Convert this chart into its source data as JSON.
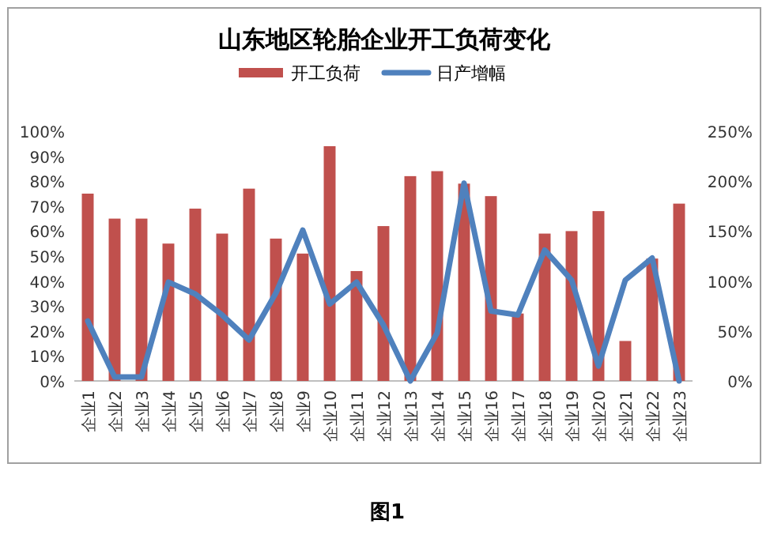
{
  "chart_data": {
    "type": "bar",
    "title": "山东地区轮胎企业开工负荷变化",
    "categories": [
      "企业1",
      "企业2",
      "企业3",
      "企业4",
      "企业5",
      "企业6",
      "企业7",
      "企业8",
      "企业9",
      "企业10",
      "企业11",
      "企业12",
      "企业13",
      "企业14",
      "企业15",
      "企业16",
      "企业17",
      "企业18",
      "企业19",
      "企业20",
      "企业21",
      "企业22",
      "企业23"
    ],
    "series": [
      {
        "name": "开工负荷",
        "color": "#c0504d",
        "values": [
          75,
          65,
          65,
          55,
          69,
          59,
          77,
          57,
          51,
          94,
          44,
          62,
          82,
          84,
          79,
          74,
          27,
          59,
          60,
          68,
          16,
          49,
          71
        ]
      },
      {
        "name": "日产增幅",
        "type": "line",
        "axis": "y2",
        "color": "#4f81bd",
        "values": [
          60,
          4,
          4,
          99,
          87,
          66,
          41,
          88,
          151,
          77,
          99,
          56,
          0,
          48,
          198,
          70,
          66,
          131,
          101,
          15,
          101,
          123,
          0
        ]
      }
    ],
    "ylim": [
      0,
      100
    ],
    "yticks": [
      {
        "value": 0,
        "label": "0%"
      },
      {
        "value": 10,
        "label": "10%"
      },
      {
        "value": 20,
        "label": "20%"
      },
      {
        "value": 30,
        "label": "30%"
      },
      {
        "value": 40,
        "label": "40%"
      },
      {
        "value": 50,
        "label": "50%"
      },
      {
        "value": 60,
        "label": "60%"
      },
      {
        "value": 70,
        "label": "70%"
      },
      {
        "value": 80,
        "label": "80%"
      },
      {
        "value": 90,
        "label": "90%"
      },
      {
        "value": 100,
        "label": "100%"
      }
    ],
    "y2lim": [
      0,
      250
    ],
    "y2ticks": [
      {
        "value": 0,
        "label": "0%"
      },
      {
        "value": 50,
        "label": "50%"
      },
      {
        "value": 100,
        "label": "100%"
      },
      {
        "value": 150,
        "label": "150%"
      },
      {
        "value": 200,
        "label": "200%"
      },
      {
        "value": 250,
        "label": "250%"
      }
    ],
    "legend": "top",
    "grid": false,
    "marker": "none",
    "line_style": "solid",
    "annotations": [
      "图1"
    ]
  }
}
